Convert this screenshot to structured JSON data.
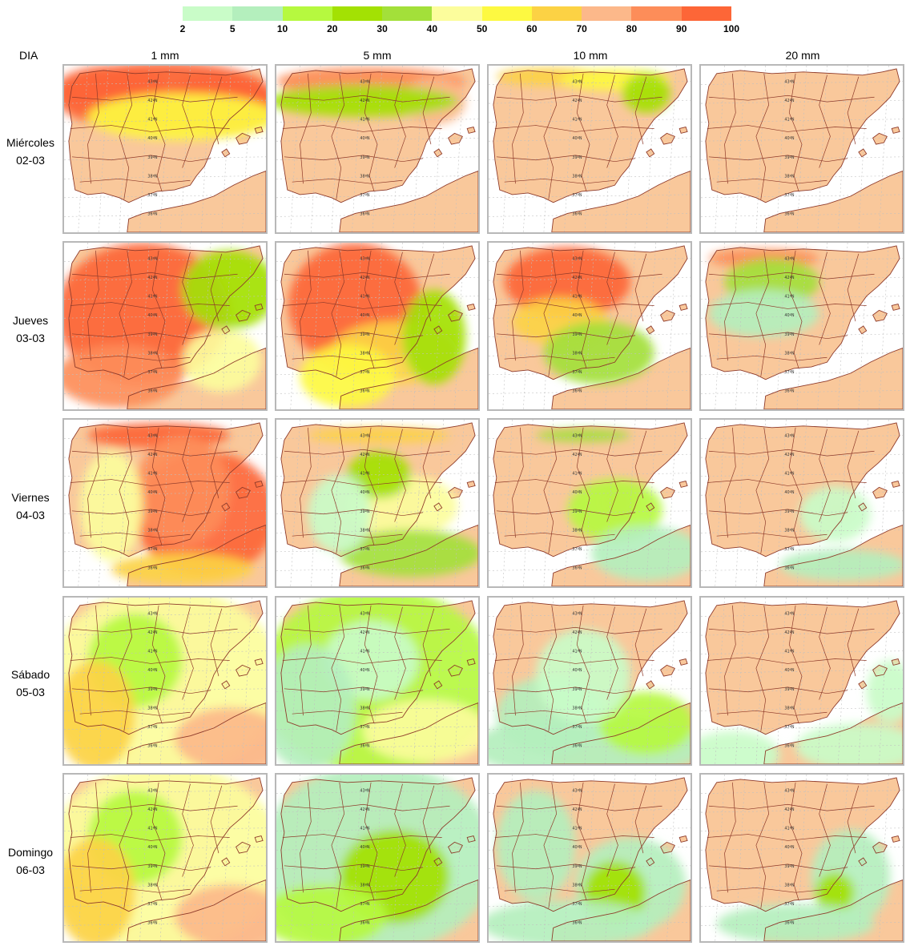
{
  "legend": {
    "colors": [
      "#c9fcc8",
      "#b4efbd",
      "#b6f93f",
      "#a3e103",
      "#a3e03a",
      "#fcfd9c",
      "#fdf941",
      "#fcd244",
      "#fcb88a",
      "#fd8d59",
      "#fd6637"
    ],
    "ticks": [
      "2",
      "5",
      "10",
      "20",
      "30",
      "40",
      "50",
      "60",
      "70",
      "80",
      "90",
      "100"
    ]
  },
  "headers": {
    "row_title": "DIA",
    "columns": [
      "1 mm",
      "5 mm",
      "10 mm",
      "20 mm"
    ]
  },
  "rows": [
    {
      "day": "Miércoles",
      "date": "02-03"
    },
    {
      "day": "Jueves",
      "date": "03-03"
    },
    {
      "day": "Viernes",
      "date": "04-03"
    },
    {
      "day": "Sábado",
      "date": "05-03"
    },
    {
      "day": "Domingo",
      "date": "06-03"
    }
  ],
  "map": {
    "land_color": "#f9c89b",
    "sea_color": "#ffffff",
    "border_color": "#8e3a2a",
    "grid_color": "#c0c0c0",
    "lat_labels": [
      "43ºN",
      "42ºN",
      "41ºN",
      "40ºN",
      "39ºN",
      "38ºN",
      "37ºN",
      "36ºN"
    ]
  },
  "precip_levels": [
    [
      [
        11,
        "north_wide"
      ],
      [
        10,
        "north_band"
      ],
      [
        8,
        "north_thin"
      ],
      [
        0,
        "none"
      ]
    ],
    [
      [
        11,
        "west_all"
      ],
      [
        11,
        "west_mid"
      ],
      [
        11,
        "northwest"
      ],
      [
        10,
        "north_core"
      ]
    ],
    [
      [
        11,
        "east_south"
      ],
      [
        8,
        "scattered_east"
      ],
      [
        9,
        "valencia"
      ],
      [
        9,
        "valencia_small"
      ]
    ],
    [
      [
        6,
        "widespread_mixed"
      ],
      [
        3,
        "widespread_green"
      ],
      [
        2,
        "light_south"
      ],
      [
        1,
        "light_scatter"
      ]
    ],
    [
      [
        6,
        "widespread_mixed"
      ],
      [
        2,
        "light_green"
      ],
      [
        2,
        "light_southeast"
      ],
      [
        2,
        "light_southeast_small"
      ]
    ]
  ]
}
